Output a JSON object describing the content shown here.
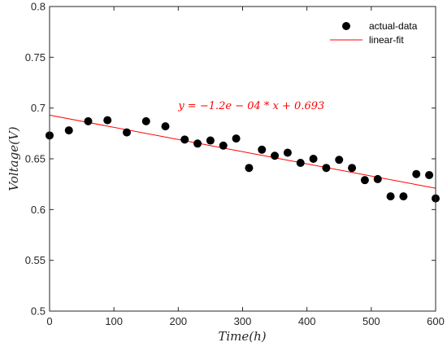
{
  "chart_data": {
    "type": "scatter",
    "xlabel": "Time(h)",
    "ylabel": "Voltage(V)",
    "xlim": [
      0,
      600
    ],
    "ylim": [
      0.5,
      0.8
    ],
    "xticks": [
      0,
      100,
      200,
      300,
      400,
      500,
      600
    ],
    "yticks": [
      0.5,
      0.55,
      0.6,
      0.65,
      0.7,
      0.75,
      0.8
    ],
    "xtick_labels": [
      "0",
      "100",
      "200",
      "300",
      "400",
      "500",
      "600"
    ],
    "ytick_labels": [
      "0.5",
      "0.55",
      "0.6",
      "0.65",
      "0.7",
      "0.75",
      "0.8"
    ],
    "grid": false,
    "legend_position": "top-right",
    "series": [
      {
        "name": "actual-data",
        "kind": "scatter",
        "color": "#000000",
        "x": [
          0,
          30,
          60,
          90,
          120,
          150,
          180,
          210,
          230,
          250,
          270,
          290,
          310,
          330,
          350,
          370,
          390,
          410,
          430,
          450,
          470,
          490,
          510,
          530,
          550,
          570,
          590,
          600
        ],
        "y": [
          0.673,
          0.678,
          0.687,
          0.688,
          0.676,
          0.687,
          0.682,
          0.669,
          0.665,
          0.668,
          0.663,
          0.67,
          0.641,
          0.659,
          0.653,
          0.656,
          0.646,
          0.65,
          0.641,
          0.649,
          0.641,
          0.629,
          0.63,
          0.613,
          0.613,
          0.635,
          0.634,
          0.611
        ]
      },
      {
        "name": "linear-fit",
        "kind": "line",
        "color": "#ff0000",
        "slope": -0.00012,
        "intercept": 0.693,
        "x": [
          0,
          600
        ],
        "y": [
          0.693,
          0.621
        ]
      }
    ],
    "annotation": {
      "text": "y = −1.2e − 04 * x + 0.693",
      "x": 200,
      "y": 0.699,
      "color": "#ff0000"
    }
  }
}
